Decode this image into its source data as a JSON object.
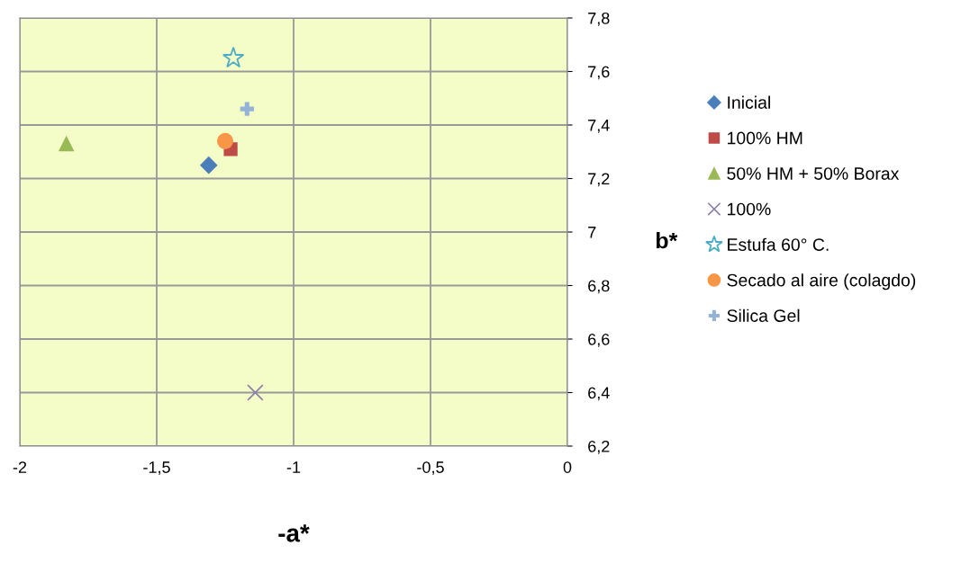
{
  "chart_data": {
    "type": "scatter",
    "xlabel": "-a*",
    "ylabel": "b*",
    "xlim": [
      -2,
      0
    ],
    "xticks": [
      {
        "value": -2,
        "label": "-2"
      },
      {
        "value": -1.5,
        "label": "-1,5"
      },
      {
        "value": -1,
        "label": "-1"
      },
      {
        "value": -0.5,
        "label": "-0,5"
      },
      {
        "value": 0,
        "label": "0"
      }
    ],
    "ylim": [
      6.2,
      7.8
    ],
    "yticks": [
      {
        "value": 6.2,
        "label": "6,2"
      },
      {
        "value": 6.4,
        "label": "6,4"
      },
      {
        "value": 6.6,
        "label": "6,6"
      },
      {
        "value": 6.8,
        "label": "6,8"
      },
      {
        "value": 7,
        "label": "7"
      },
      {
        "value": 7.2,
        "label": "7,2"
      },
      {
        "value": 7.4,
        "label": "7,4"
      },
      {
        "value": 7.6,
        "label": "7,6"
      },
      {
        "value": 7.8,
        "label": "7,8"
      }
    ],
    "grid": true,
    "legend": "right",
    "series": [
      {
        "name": "Inicial",
        "color": "#4a7ebb",
        "marker": "diamond",
        "x": [
          -1.31
        ],
        "values": [
          7.25
        ]
      },
      {
        "name": "100% HM",
        "color": "#be4b48",
        "marker": "square",
        "x": [
          -1.23
        ],
        "values": [
          7.31
        ]
      },
      {
        "name": "50% HM + 50% Borax",
        "color": "#98b954",
        "marker": "triangle",
        "x": [
          -1.83
        ],
        "values": [
          7.33
        ]
      },
      {
        "name": "100%",
        "color": "#8c7fa8",
        "marker": "cross",
        "x": [
          -1.14
        ],
        "values": [
          6.4
        ]
      },
      {
        "name": "Estufa 60° C.",
        "color": "#4bacc6",
        "marker": "star",
        "x": [
          -1.22
        ],
        "values": [
          7.65
        ]
      },
      {
        "name": "Secado al aire (colagdo)",
        "color": "#f79646",
        "marker": "circle",
        "x": [
          -1.25
        ],
        "values": [
          7.34
        ]
      },
      {
        "name": "Silica Gel",
        "color": "#95b3d7",
        "x": [
          -1.17
        ],
        "values": [
          7.46
        ]
      }
    ]
  }
}
